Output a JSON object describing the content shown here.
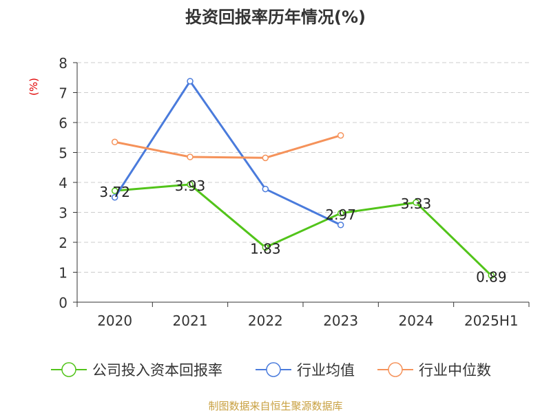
{
  "colors": {
    "title": "#333333",
    "axis": "#333333",
    "grid": "#cccccc",
    "unit": "#e00000",
    "source": "#c8a040",
    "series": [
      "#52c41a",
      "#4a7bdc",
      "#f5925a"
    ]
  },
  "chart_data": {
    "type": "line",
    "title": "投资回报率历年情况(%)",
    "ylabel": "(%)",
    "xlabel": "",
    "categories": [
      "2020",
      "2021",
      "2022",
      "2023",
      "2024",
      "2025H1"
    ],
    "ylim": [
      0,
      8
    ],
    "yticks": [
      "0",
      "1",
      "2",
      "3",
      "4",
      "5",
      "6",
      "7",
      "8"
    ],
    "grid": true,
    "legend_position": "bottom",
    "series": [
      {
        "name": "公司投入资本回报率",
        "values": [
          3.72,
          3.93,
          1.83,
          2.97,
          3.33,
          0.89
        ],
        "labels": [
          "3.72",
          "3.93",
          "1.83",
          "2.97",
          "3.33",
          "0.89"
        ]
      },
      {
        "name": "行业均值",
        "values": [
          3.5,
          7.38,
          3.78,
          2.58,
          null,
          null
        ]
      },
      {
        "name": "行业中位数",
        "values": [
          5.35,
          4.85,
          4.82,
          5.57,
          null,
          null
        ]
      }
    ]
  },
  "source_text": "制图数据来自恒生聚源数据库"
}
